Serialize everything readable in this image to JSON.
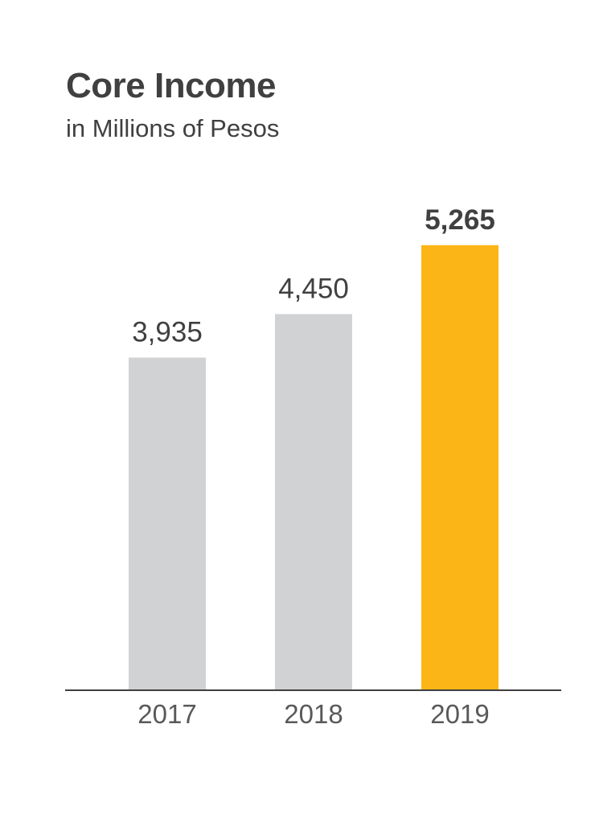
{
  "chart_data": {
    "type": "bar",
    "title": "Core Income",
    "subtitle": "in Millions of Pesos",
    "categories": [
      "2017",
      "2018",
      "2019"
    ],
    "values": [
      3935,
      4450,
      5265
    ],
    "value_labels": [
      "3,935",
      "4,450",
      "5,265"
    ],
    "highlight_index": 2,
    "ylim": [
      0,
      6300
    ],
    "grid": false,
    "colors": {
      "bar": "#d1d2d4",
      "highlight": "#fbb516",
      "axis": "#404041"
    }
  }
}
